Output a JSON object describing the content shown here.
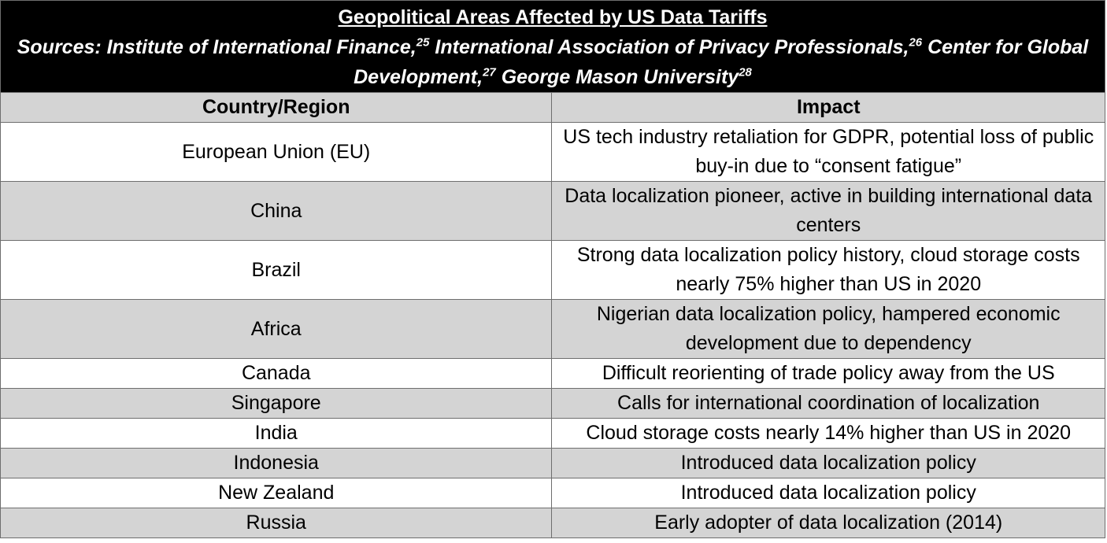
{
  "title": "Geopolitical Areas Affected by US Data Tariffs",
  "sources": {
    "prefix": "Sources: ",
    "items": [
      {
        "name": "Institute of International Finance,",
        "ref": "25"
      },
      {
        "name": " International Association of Privacy Professionals,",
        "ref": "26"
      },
      {
        "name": " Center for Global Development,",
        "ref": "27"
      },
      {
        "name": " George Mason University",
        "ref": "28"
      }
    ]
  },
  "headers": {
    "country": "Country/Region",
    "impact": "Impact"
  },
  "rows": [
    {
      "country": "European Union (EU)",
      "impact": "US tech industry retaliation for GDPR, potential loss of public buy-in due to “consent fatigue”"
    },
    {
      "country": "China",
      "impact": "Data localization pioneer, active in building international data centers"
    },
    {
      "country": "Brazil",
      "impact": "Strong data localization policy history, cloud storage costs nearly 75% higher than US in 2020"
    },
    {
      "country": "Africa",
      "impact": "Nigerian data localization policy, hampered economic development due to dependency"
    },
    {
      "country": "Canada",
      "impact": "Difficult reorienting of trade policy away from the US"
    },
    {
      "country": "Singapore",
      "impact": "Calls for international coordination of localization"
    },
    {
      "country": "India",
      "impact": "Cloud storage costs nearly 14% higher than US in 2020"
    },
    {
      "country": "Indonesia",
      "impact": "Introduced data localization policy"
    },
    {
      "country": "New Zealand",
      "impact": "Introduced data localization policy"
    },
    {
      "country": "Russia",
      "impact": "Early adopter of data localization (2014)"
    }
  ],
  "colors": {
    "title_bg": "#000000",
    "title_fg": "#ffffff",
    "shaded_row": "#d4d4d4",
    "border": "#6e6e6e"
  }
}
